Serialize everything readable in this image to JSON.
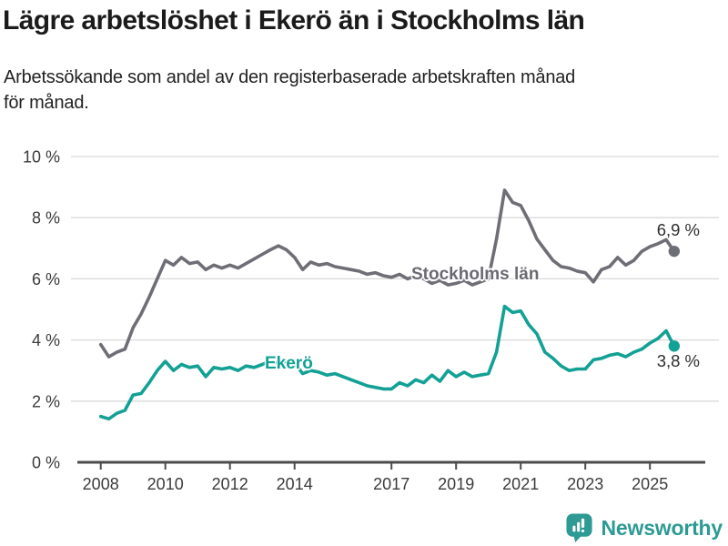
{
  "title": "Lägre arbetslöshet i Ekerö än i Stockholms län",
  "subtitle_lines": [
    "Arbetssökande som andel av den registerbaserade arbetskraften månad",
    "för månad."
  ],
  "footer": {
    "brand": "Newsworthy",
    "brand_color": "#2E9A94"
  },
  "chart_data": {
    "type": "line",
    "title": "Lägre arbetslöshet i Ekerö än i Stockholms län",
    "xlabel": "",
    "ylabel": "",
    "x_start": 2008,
    "x_step": 0.25,
    "xlim": [
      2007.3,
      2026.2
    ],
    "ylim": [
      0,
      10
    ],
    "grid": "horizontal",
    "x_tick_years": [
      2008,
      2010,
      2012,
      2014,
      2017,
      2019,
      2021,
      2023,
      2025
    ],
    "x_tick_labels": [
      "2008",
      "2010",
      "2012",
      "2014",
      "2017",
      "2019",
      "2021",
      "2023",
      "2025"
    ],
    "y_tick_values": [
      0,
      2,
      4,
      6,
      8,
      10
    ],
    "y_tick_labels": [
      "0 %",
      "2 %",
      "4 %",
      "6 %",
      "8 %",
      "10 %"
    ],
    "legend_position": "inline-labels",
    "series": [
      {
        "name": "Stockholms län",
        "slug": "stockholms-lan",
        "color": "#6E6E76",
        "end_label": "6,9 %",
        "end_value": 6.9,
        "values": [
          3.85,
          3.45,
          3.6,
          3.7,
          4.4,
          4.85,
          5.4,
          6.0,
          6.6,
          6.45,
          6.7,
          6.5,
          6.55,
          6.3,
          6.45,
          6.35,
          6.45,
          6.35,
          6.5,
          6.65,
          6.8,
          6.95,
          7.08,
          6.95,
          6.7,
          6.3,
          6.55,
          6.45,
          6.5,
          6.4,
          6.35,
          6.3,
          6.25,
          6.15,
          6.2,
          6.1,
          6.05,
          6.15,
          6.0,
          6.1,
          6.0,
          5.85,
          5.95,
          5.8,
          5.85,
          5.95,
          5.8,
          5.9,
          6.0,
          7.3,
          8.9,
          8.5,
          8.4,
          7.9,
          7.3,
          6.95,
          6.6,
          6.4,
          6.35,
          6.25,
          6.2,
          5.9,
          6.3,
          6.4,
          6.7,
          6.45,
          6.6,
          6.9,
          7.05,
          7.15,
          7.28,
          6.9
        ]
      },
      {
        "name": "Ekerö",
        "slug": "ekero",
        "color": "#13A195",
        "end_label": "3,8 %",
        "end_value": 3.8,
        "values": [
          1.5,
          1.42,
          1.6,
          1.7,
          2.2,
          2.25,
          2.6,
          3.0,
          3.3,
          3.0,
          3.2,
          3.1,
          3.15,
          2.8,
          3.1,
          3.05,
          3.1,
          3.0,
          3.15,
          3.1,
          3.2,
          3.3,
          3.25,
          3.3,
          3.25,
          2.9,
          3.0,
          2.95,
          2.85,
          2.9,
          2.8,
          2.7,
          2.6,
          2.5,
          2.45,
          2.4,
          2.4,
          2.6,
          2.5,
          2.7,
          2.6,
          2.85,
          2.65,
          3.0,
          2.8,
          2.95,
          2.8,
          2.85,
          2.9,
          3.6,
          5.1,
          4.9,
          4.95,
          4.5,
          4.2,
          3.6,
          3.4,
          3.15,
          3.0,
          3.05,
          3.05,
          3.35,
          3.4,
          3.5,
          3.55,
          3.45,
          3.6,
          3.7,
          3.9,
          4.05,
          4.3,
          3.8
        ]
      }
    ]
  }
}
